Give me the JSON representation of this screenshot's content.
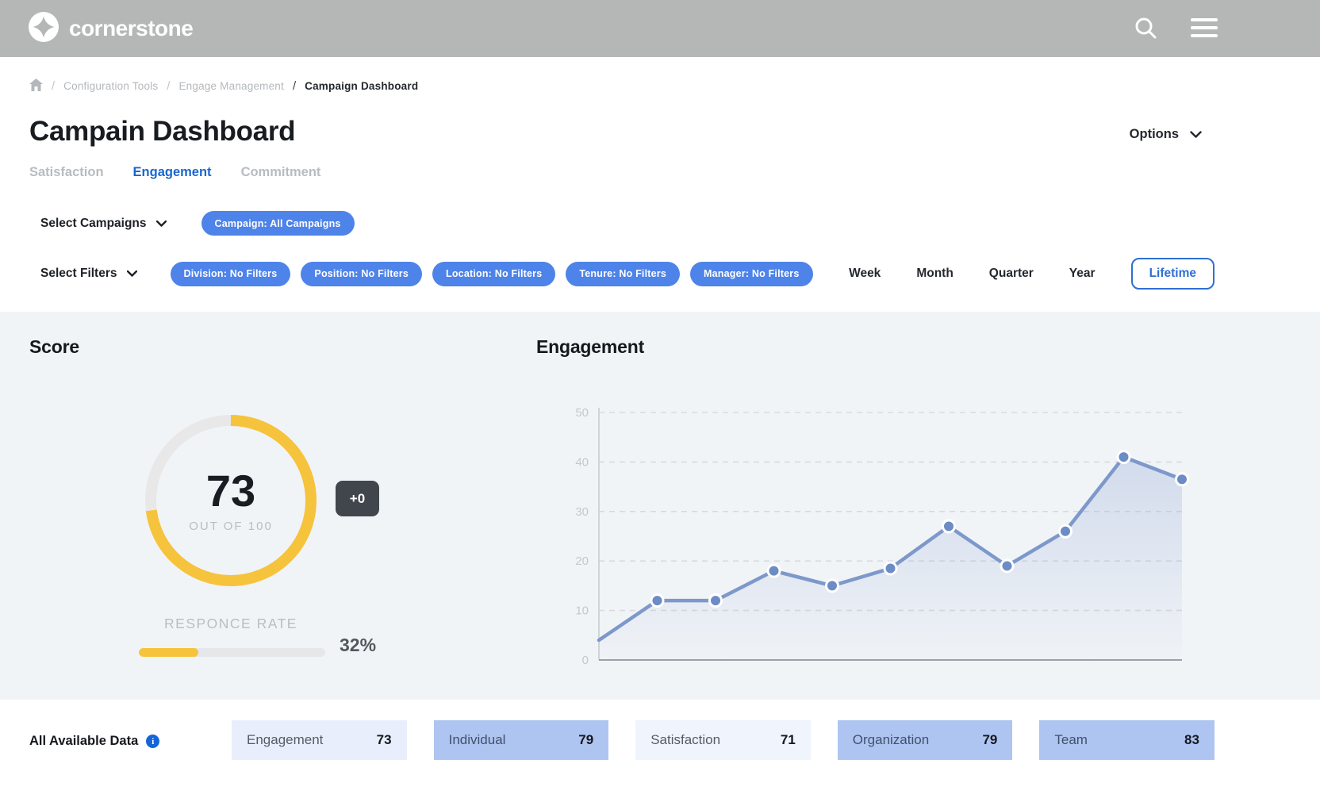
{
  "colors": {
    "header_bg": "#b5b6b6",
    "accent_blue": "#4e83e9",
    "active_tab_blue": "#1866d2",
    "lifetime_blue": "#2e6fd3",
    "donut_yellow": "#f6c33c",
    "line_blue": "#7d98ca",
    "panel_bg": "#f1f4f7",
    "card_light": "#e9eefc",
    "card_medium": "#aec5f2",
    "badge_dark": "#41454c"
  },
  "header": {
    "brand": "cornerstone",
    "icons": [
      "logo-sparkle-icon",
      "search-icon",
      "menu-icon"
    ]
  },
  "breadcrumb": {
    "items": [
      "Configuration Tools",
      "Engage Management",
      "Campaign Dashboard"
    ]
  },
  "page": {
    "title": "Campain Dashboard",
    "options_label": "Options"
  },
  "tabs": [
    {
      "label": "Satisfaction",
      "active": false
    },
    {
      "label": "Engagement",
      "active": true
    },
    {
      "label": "Commitment",
      "active": false
    }
  ],
  "campaigns": {
    "dropdown_label": "Select Campaigns",
    "chip": "Campaign: All Campaigns"
  },
  "filters": {
    "dropdown_label": "Select Filters",
    "chips": [
      "Division: No Filters",
      "Position: No Filters",
      "Location: No Filters",
      "Tenure: No Filters",
      "Manager: No Filters"
    ]
  },
  "time_ranges": {
    "options": [
      "Week",
      "Month",
      "Quarter",
      "Year",
      "Lifetime"
    ],
    "selected": "Lifetime"
  },
  "score": {
    "heading": "Score",
    "value": 73,
    "max": 100,
    "out_of_label": "OUT OF 100",
    "delta_label": "+0",
    "response_rate_label": "RESPONCE RATE",
    "response_rate_pct": 32,
    "response_rate_text": "32%"
  },
  "chart_data": {
    "type": "area",
    "title": "Engagement",
    "values": [
      4,
      12,
      12,
      18,
      15,
      18.5,
      27,
      19,
      26,
      41,
      36.5
    ],
    "ylim": [
      0,
      50
    ],
    "yticks": [
      0,
      10,
      20,
      30,
      40,
      50
    ],
    "xlabel": "",
    "ylabel": "",
    "grid": "horizontal-dashed",
    "legend": "none"
  },
  "bottom": {
    "label": "All Available Data",
    "info_icon": "info-icon",
    "cards": [
      {
        "label": "Engagement",
        "value": 73,
        "tone": "light"
      },
      {
        "label": "Individual",
        "value": 79,
        "tone": "medium"
      },
      {
        "label": "Satisfaction",
        "value": 71,
        "tone": "lighter"
      },
      {
        "label": "Organization",
        "value": 79,
        "tone": "medium"
      },
      {
        "label": "Team",
        "value": 83,
        "tone": "medium"
      }
    ]
  }
}
